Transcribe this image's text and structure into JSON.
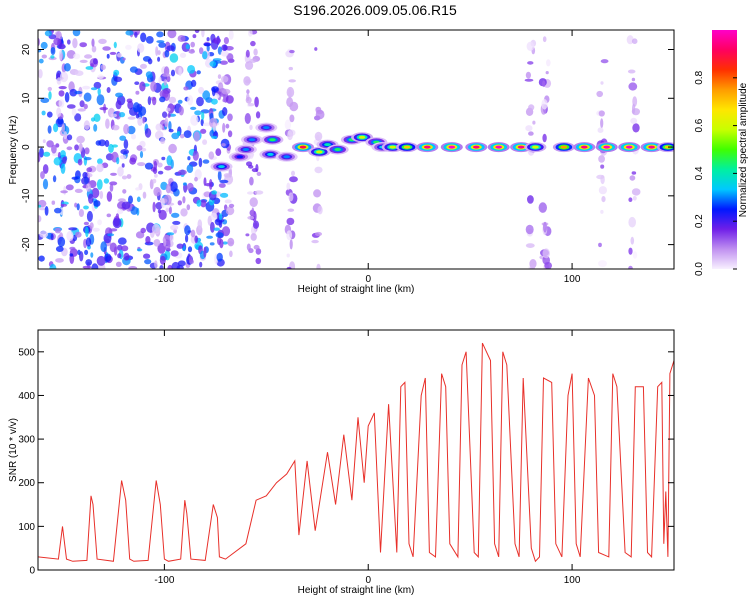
{
  "title": "S196.2026.009.05.06.R15",
  "chart_data": [
    {
      "type": "heatmap",
      "xlabel": "Height of straight line (km)",
      "ylabel": "Frequency (Hz)",
      "xlim": [
        -162,
        150
      ],
      "ylim": [
        -25,
        24
      ],
      "xticks": [
        -100,
        0,
        100
      ],
      "yticks": [
        -20,
        -10,
        0,
        10,
        20
      ],
      "colorbar": {
        "label": "Normalized spectral amplitude",
        "range": [
          0,
          1
        ],
        "ticks": [
          "0.0",
          "0.2",
          "0.4",
          "0.6",
          "0.8"
        ],
        "colors": [
          "#f8f0ff",
          "#c090f0",
          "#6f1fe8",
          "#0018ff",
          "#00c8ff",
          "#00f0a0",
          "#40ff00",
          "#c8ff00",
          "#ffe600",
          "#ff9c00",
          "#ff3000",
          "#ff0060",
          "#ff00c8"
        ]
      },
      "ridge": [
        {
          "x": -72,
          "f": -4,
          "a": 0.35
        },
        {
          "x": -63,
          "f": -2,
          "a": 0.25
        },
        {
          "x": -60,
          "f": -0.5,
          "a": 0.3
        },
        {
          "x": -57,
          "f": 1.5,
          "a": 0.3
        },
        {
          "x": -50,
          "f": 4,
          "a": 0.3
        },
        {
          "x": -48,
          "f": -1.5,
          "a": 0.35
        },
        {
          "x": -47,
          "f": 1.5,
          "a": 0.45
        },
        {
          "x": -40,
          "f": -2,
          "a": 0.3
        },
        {
          "x": -32,
          "f": 0,
          "a": 0.9
        },
        {
          "x": -24,
          "f": -1,
          "a": 0.6
        },
        {
          "x": -20,
          "f": 0.5,
          "a": 0.4
        },
        {
          "x": -15,
          "f": -0.5,
          "a": 0.45
        },
        {
          "x": -8,
          "f": 1.5,
          "a": 0.45
        },
        {
          "x": -3,
          "f": 2,
          "a": 0.6
        },
        {
          "x": 4,
          "f": 1,
          "a": 0.45
        },
        {
          "x": 7,
          "f": 0,
          "a": 0.35
        },
        {
          "x": 12,
          "f": 0,
          "a": 0.6
        },
        {
          "x": 19,
          "f": 0,
          "a": 0.7
        },
        {
          "x": 29,
          "f": 0,
          "a": 0.95
        },
        {
          "x": 41,
          "f": 0,
          "a": 1.0
        },
        {
          "x": 53,
          "f": 0,
          "a": 0.95
        },
        {
          "x": 64,
          "f": 0,
          "a": 1.0
        },
        {
          "x": 75,
          "f": 0,
          "a": 0.95
        },
        {
          "x": 82,
          "f": 0,
          "a": 0.6
        },
        {
          "x": 96,
          "f": 0,
          "a": 0.75
        },
        {
          "x": 106,
          "f": 0,
          "a": 0.95
        },
        {
          "x": 117,
          "f": 0,
          "a": 1.0
        },
        {
          "x": 128,
          "f": 0,
          "a": 1.0
        },
        {
          "x": 139,
          "f": 0,
          "a": 0.95
        },
        {
          "x": 147,
          "f": 0,
          "a": 0.7
        }
      ]
    },
    {
      "type": "line",
      "xlabel": "Height of straight line (km)",
      "ylabel": "SNR (10 * v/v)",
      "xlim": [
        -162,
        150
      ],
      "ylim": [
        0,
        550
      ],
      "xticks": [
        -100,
        0,
        100
      ],
      "yticks": [
        0,
        100,
        200,
        300,
        400,
        500
      ],
      "series": [
        {
          "name": "SNR",
          "color": "#e8302a",
          "x": [
            -162,
            -152,
            -150,
            -148,
            -145,
            -138,
            -136,
            -135,
            -133,
            -125,
            -121,
            -119,
            -117,
            -115,
            -108,
            -104,
            -102,
            -100,
            -98,
            -92,
            -90,
            -89,
            -87,
            -80,
            -76,
            -74,
            -73,
            -70,
            -60,
            -55,
            -50,
            -45,
            -40,
            -36,
            -34,
            -30,
            -26,
            -20,
            -16,
            -12,
            -8,
            -5,
            -2,
            0,
            3,
            6,
            10,
            14,
            16,
            18,
            20,
            22,
            26,
            28,
            30,
            33,
            36,
            38,
            40,
            44,
            46,
            48,
            52,
            54,
            56,
            60,
            62,
            64,
            66,
            68,
            72,
            74,
            76,
            80,
            82,
            84,
            86,
            90,
            92,
            95,
            98,
            100,
            102,
            104,
            108,
            111,
            113,
            118,
            120,
            122,
            126,
            129,
            131,
            135,
            137,
            139,
            142,
            144,
            145,
            146,
            147,
            148,
            150
          ],
          "y": [
            30,
            25,
            100,
            25,
            20,
            22,
            170,
            150,
            25,
            20,
            205,
            160,
            25,
            20,
            22,
            205,
            150,
            25,
            20,
            25,
            160,
            130,
            25,
            22,
            150,
            120,
            30,
            25,
            60,
            160,
            170,
            200,
            220,
            250,
            80,
            250,
            90,
            270,
            150,
            310,
            160,
            350,
            200,
            330,
            360,
            40,
            380,
            40,
            420,
            430,
            60,
            30,
            400,
            440,
            40,
            30,
            450,
            420,
            60,
            30,
            470,
            500,
            40,
            30,
            520,
            480,
            60,
            30,
            500,
            470,
            60,
            30,
            440,
            50,
            20,
            30,
            440,
            430,
            60,
            30,
            400,
            450,
            60,
            30,
            440,
            400,
            40,
            30,
            450,
            420,
            40,
            30,
            420,
            420,
            40,
            30,
            420,
            430,
            60,
            180,
            30,
            450,
            480
          ]
        }
      ]
    }
  ]
}
